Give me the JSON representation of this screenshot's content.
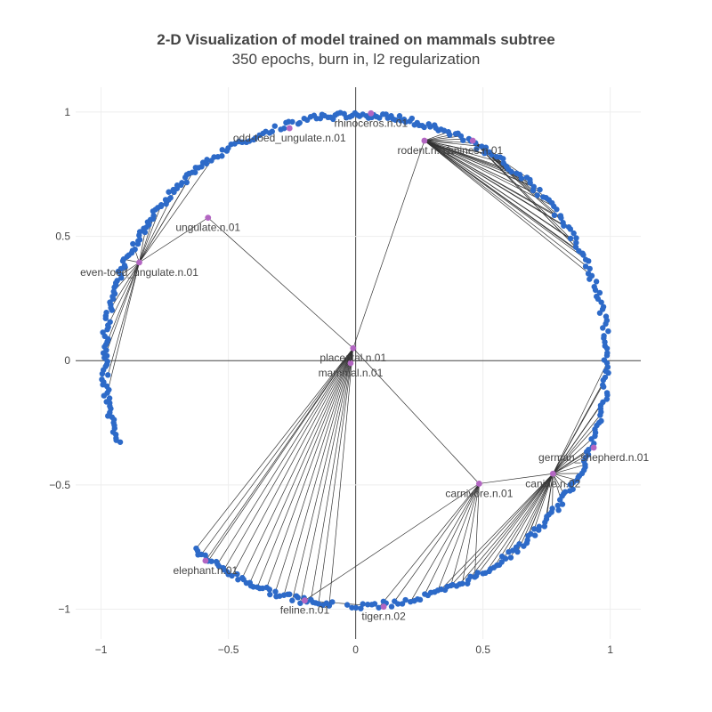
{
  "chart_data": {
    "type": "scatter",
    "title": "2-D Visualization of model trained on mammals subtree",
    "subtitle": "350 epochs, burn in, l2 regularization",
    "xlabel": "",
    "ylabel": "",
    "xlim": [
      -1.1,
      1.12
    ],
    "ylim": [
      -1.12,
      1.1
    ],
    "xticks": [
      {
        "value": -1,
        "label": "−1"
      },
      {
        "value": -0.5,
        "label": "−0.5"
      },
      {
        "value": 0,
        "label": "0"
      },
      {
        "value": 0.5,
        "label": "0.5"
      },
      {
        "value": 1,
        "label": "1"
      }
    ],
    "yticks": [
      {
        "value": -1,
        "label": "−1"
      },
      {
        "value": -0.5,
        "label": "−0.5"
      },
      {
        "value": 0,
        "label": "0"
      },
      {
        "value": 0.5,
        "label": "0.5"
      },
      {
        "value": 1,
        "label": "1"
      }
    ],
    "grid": true,
    "colors": {
      "point": "#2d6ac8",
      "labeled": "#b366c2",
      "edge": "#333333"
    },
    "labeled_nodes": [
      {
        "name": "rhinoceros.n.01",
        "x": 0.06,
        "y": 0.995
      },
      {
        "name": "odd-toed_ungulate.n.01",
        "x": -0.26,
        "y": 0.935
      },
      {
        "name": "rodent.n.01",
        "x": 0.27,
        "y": 0.885
      },
      {
        "name": "canines.n.01",
        "x": 0.46,
        "y": 0.885
      },
      {
        "name": "ungulate.n.01",
        "x": -0.58,
        "y": 0.575
      },
      {
        "name": "even-toed_ungulate.n.01",
        "x": -0.85,
        "y": 0.395
      },
      {
        "name": "placental.n.01",
        "x": -0.01,
        "y": 0.05
      },
      {
        "name": "mammal.n.01",
        "x": -0.02,
        "y": -0.01
      },
      {
        "name": "german_shepherd.n.01",
        "x": 0.935,
        "y": -0.35
      },
      {
        "name": "canine.n.02",
        "x": 0.775,
        "y": -0.455
      },
      {
        "name": "carnivore.n.01",
        "x": 0.485,
        "y": -0.495
      },
      {
        "name": "elephant.n.01",
        "x": -0.59,
        "y": -0.805
      },
      {
        "name": "feline.n.01",
        "x": -0.2,
        "y": -0.965
      },
      {
        "name": "tiger.n.02",
        "x": 0.11,
        "y": -0.99
      }
    ],
    "point_clusters": [
      {
        "from_deg": 70,
        "to_deg": 100,
        "count": 48
      },
      {
        "from_deg": 100,
        "to_deg": 125,
        "count": 30
      },
      {
        "from_deg": 125,
        "to_deg": 160,
        "count": 55
      },
      {
        "from_deg": 160,
        "to_deg": 200,
        "count": 60
      },
      {
        "from_deg": 230,
        "to_deg": 265,
        "count": 50
      },
      {
        "from_deg": 268,
        "to_deg": 290,
        "count": 25
      },
      {
        "from_deg": 290,
        "to_deg": 340,
        "count": 70
      },
      {
        "from_deg": 340,
        "to_deg": 380,
        "count": 48
      },
      {
        "from_deg": 20,
        "to_deg": 70,
        "count": 60
      }
    ]
  }
}
